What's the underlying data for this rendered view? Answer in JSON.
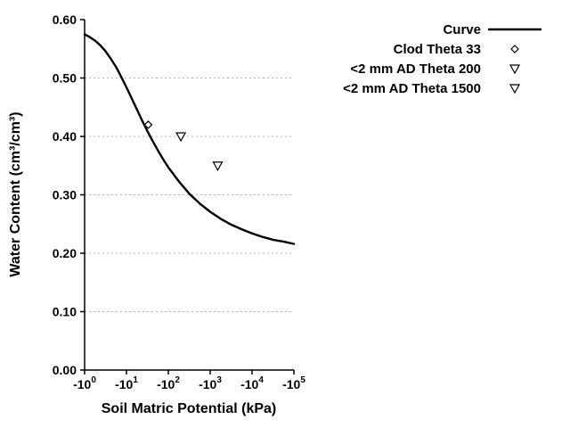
{
  "chart_data": {
    "type": "line",
    "title": "",
    "xlabel": "Soil Matric Potential (kPa)",
    "ylabel": "Water Content (cm³/cm³)",
    "x_axis": {
      "scale": "negative_log10",
      "range_log10": [
        0,
        5
      ],
      "ticks": [
        {
          "log10": 0,
          "base": "-10",
          "exp": "0"
        },
        {
          "log10": 1,
          "base": "-10",
          "exp": "1"
        },
        {
          "log10": 2,
          "base": "-10",
          "exp": "2"
        },
        {
          "log10": 3,
          "base": "-10",
          "exp": "3"
        },
        {
          "log10": 4,
          "base": "-10",
          "exp": "4"
        },
        {
          "log10": 5,
          "base": "-10",
          "exp": "5"
        }
      ]
    },
    "y_axis": {
      "min": 0.0,
      "max": 0.6,
      "ticks": [
        {
          "value": 0.0,
          "label": "0.00"
        },
        {
          "value": 0.1,
          "label": "0.10"
        },
        {
          "value": 0.2,
          "label": "0.20"
        },
        {
          "value": 0.3,
          "label": "0.30"
        },
        {
          "value": 0.4,
          "label": "0.40"
        },
        {
          "value": 0.5,
          "label": "0.50"
        },
        {
          "value": 0.6,
          "label": "0.60"
        }
      ]
    },
    "grid": {
      "horizontal_dotted_at": [
        0.1,
        0.2,
        0.3,
        0.4,
        0.5
      ],
      "color": "#b3b3b3"
    },
    "colors": {
      "axis": "#000000",
      "curve": "#000000",
      "text": "#000000",
      "background": "#ffffff"
    },
    "series": [
      {
        "name": "Curve",
        "kind": "line",
        "stroke_width": 2.4,
        "points": [
          [
            0,
            0.575
          ],
          [
            0.125,
            0.57
          ],
          [
            0.25,
            0.564
          ],
          [
            0.375,
            0.556
          ],
          [
            0.5,
            0.546
          ],
          [
            0.625,
            0.533
          ],
          [
            0.75,
            0.519
          ],
          [
            0.875,
            0.502
          ],
          [
            1,
            0.484
          ],
          [
            1.125,
            0.465
          ],
          [
            1.25,
            0.446
          ],
          [
            1.375,
            0.427
          ],
          [
            1.5,
            0.409
          ],
          [
            1.625,
            0.392
          ],
          [
            1.75,
            0.376
          ],
          [
            1.875,
            0.361
          ],
          [
            2,
            0.347
          ],
          [
            2.25,
            0.323
          ],
          [
            2.5,
            0.302
          ],
          [
            2.75,
            0.285
          ],
          [
            3,
            0.271
          ],
          [
            3.25,
            0.259
          ],
          [
            3.5,
            0.249
          ],
          [
            3.75,
            0.241
          ],
          [
            4,
            0.234
          ],
          [
            4.25,
            0.228
          ],
          [
            4.5,
            0.223
          ],
          [
            4.75,
            0.22
          ],
          [
            5,
            0.216
          ]
        ]
      },
      {
        "name": "Clod Theta 33",
        "kind": "scatter",
        "marker": "diamond",
        "points": [
          [
            1.52,
            0.42
          ]
        ]
      },
      {
        "name": "<2 mm AD Theta 200",
        "kind": "scatter",
        "marker": "triangle-down",
        "points": [
          [
            2.3,
            0.4
          ]
        ]
      },
      {
        "name": "<2 mm AD Theta 1500",
        "kind": "scatter",
        "marker": "triangle-down",
        "points": [
          [
            3.18,
            0.35
          ]
        ]
      }
    ],
    "legend": {
      "position": "top-right",
      "entries": [
        {
          "label": "Curve",
          "marker": "line"
        },
        {
          "label": "Clod Theta 33",
          "marker": "diamond"
        },
        {
          "label": "<2 mm AD Theta 200",
          "marker": "triangle-down"
        },
        {
          "label": "<2 mm AD Theta 1500",
          "marker": "triangle-down"
        }
      ]
    }
  }
}
